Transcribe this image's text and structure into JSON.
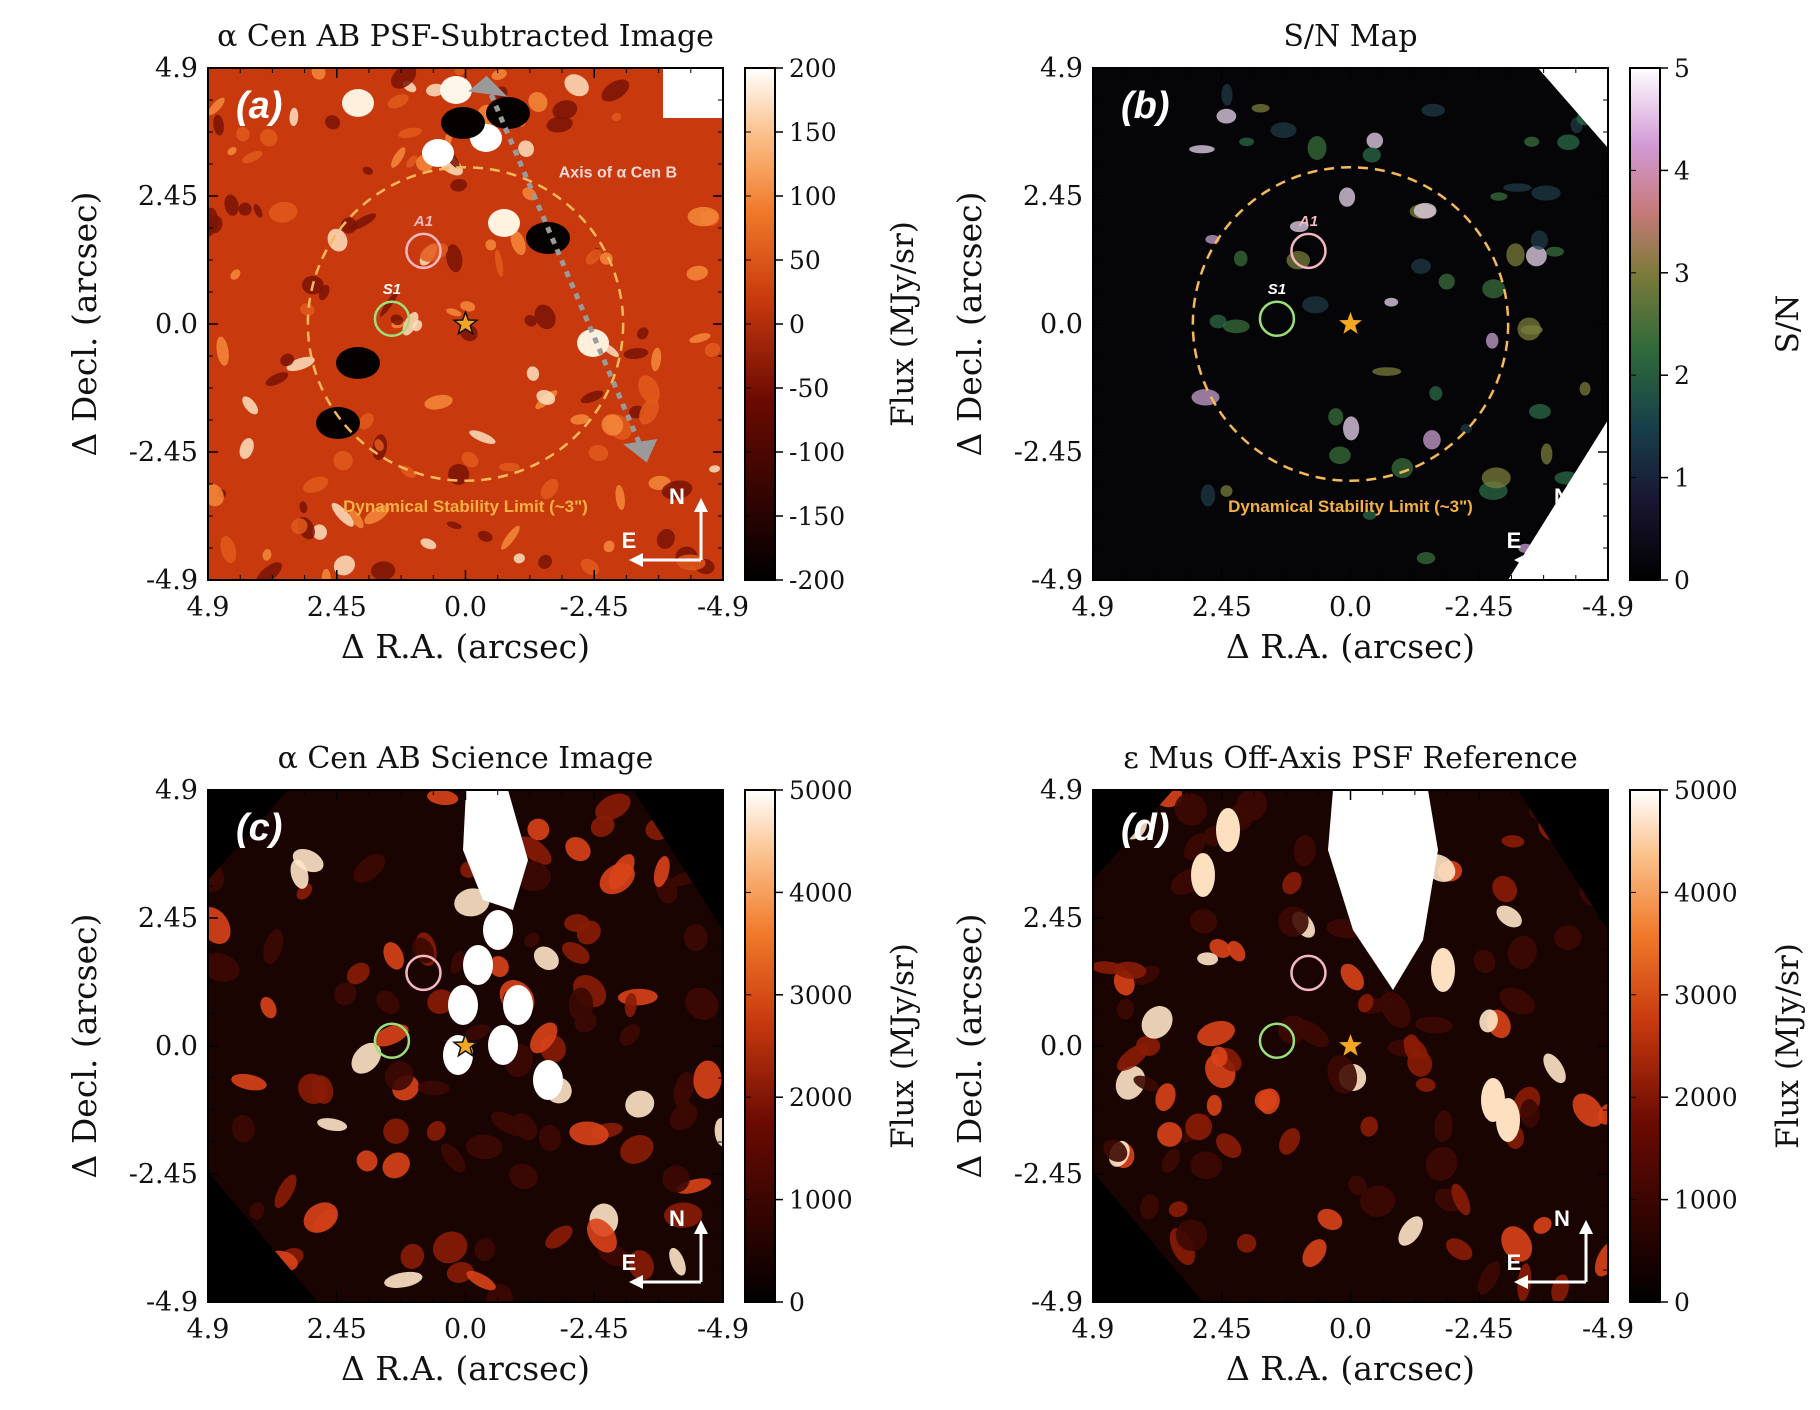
{
  "chart_data": [
    {
      "id": "a",
      "type": "heatmap",
      "title": "α Cen AB PSF-Subtracted Image",
      "panel_label": "(a)",
      "xlabel": "Δ R.A. (arcsec)",
      "ylabel": "Δ Decl. (arcsec)",
      "x_ticks": [
        "4.9",
        "2.45",
        "0.0",
        "-2.45",
        "-4.9"
      ],
      "y_ticks": [
        "4.9",
        "2.45",
        "0.0",
        "-2.45",
        "-4.9"
      ],
      "xlim": [
        4.9,
        -4.9
      ],
      "ylim": [
        -4.9,
        4.9
      ],
      "colorbar": {
        "label": "Flux (MJy/sr)",
        "range": [
          -200,
          200
        ],
        "ticks": [
          "200",
          "150",
          "100",
          "50",
          "0",
          "-50",
          "-100",
          "-150",
          "-200"
        ],
        "colormap": "gist_heat"
      },
      "background": "#c83a0e",
      "sources": [
        {
          "name": "A1",
          "ra": 0.8,
          "dec": 1.4,
          "color": "#f4b8c2"
        },
        {
          "name": "S1",
          "ra": 1.4,
          "dec": 0.1,
          "color": "#9be07a"
        }
      ],
      "star": {
        "ra": 0.0,
        "dec": 0.0,
        "color": "#111111"
      },
      "stability_radius_arcsec": 3.0,
      "stability_label": "Dynamical Stability Limit (~3\")",
      "axis_annotation": "Axis of α Cen B",
      "compass": {
        "north": "N",
        "east": "E"
      }
    },
    {
      "id": "b",
      "type": "heatmap",
      "title": "S/N Map",
      "panel_label": "(b)",
      "xlabel": "Δ R.A. (arcsec)",
      "ylabel": "Δ Decl. (arcsec)",
      "x_ticks": [
        "4.9",
        "2.45",
        "0.0",
        "-2.45",
        "-4.9"
      ],
      "y_ticks": [
        "4.9",
        "2.45",
        "0.0",
        "-2.45",
        "-4.9"
      ],
      "xlim": [
        4.9,
        -4.9
      ],
      "ylim": [
        -4.9,
        4.9
      ],
      "colorbar": {
        "label": "S/N",
        "range": [
          0,
          5
        ],
        "ticks": [
          "5",
          "4",
          "3",
          "2",
          "1",
          "0"
        ],
        "colormap": "cubehelix"
      },
      "background": "#050508",
      "sources": [
        {
          "name": "A1",
          "ra": 0.8,
          "dec": 1.4,
          "color": "#f4b8c2"
        },
        {
          "name": "S1",
          "ra": 1.4,
          "dec": 0.1,
          "color": "#9be07a"
        }
      ],
      "star": {
        "ra": 0.0,
        "dec": 0.0,
        "color": "#f5a623"
      },
      "stability_radius_arcsec": 3.0,
      "stability_label": "Dynamical Stability Limit (~3\")",
      "compass": {
        "north": "N",
        "east": "E"
      }
    },
    {
      "id": "c",
      "type": "heatmap",
      "title": "α Cen AB Science Image",
      "panel_label": "(c)",
      "xlabel": "Δ R.A. (arcsec)",
      "ylabel": "Δ Decl. (arcsec)",
      "x_ticks": [
        "4.9",
        "2.45",
        "0.0",
        "-2.45",
        "-4.9"
      ],
      "y_ticks": [
        "4.9",
        "2.45",
        "0.0",
        "-2.45",
        "-4.9"
      ],
      "xlim": [
        4.9,
        -4.9
      ],
      "ylim": [
        -4.9,
        4.9
      ],
      "colorbar": {
        "label": "Flux (MJy/sr)",
        "range": [
          0,
          5000
        ],
        "ticks": [
          "5000",
          "4000",
          "3000",
          "2000",
          "1000",
          "0"
        ],
        "colormap": "gist_heat"
      },
      "background": "#1a0402",
      "sources": [
        {
          "name": "",
          "ra": 0.8,
          "dec": 1.4,
          "color": "#f4b8c2"
        },
        {
          "name": "",
          "ra": 1.4,
          "dec": 0.1,
          "color": "#9be07a"
        }
      ],
      "star": {
        "ra": 0.0,
        "dec": 0.0,
        "color": "#111111"
      },
      "compass": {
        "north": "N",
        "east": "E"
      }
    },
    {
      "id": "d",
      "type": "heatmap",
      "title": "ε Mus Off-Axis PSF Reference",
      "panel_label": "(d)",
      "xlabel": "Δ R.A. (arcsec)",
      "ylabel": "Δ Decl. (arcsec)",
      "x_ticks": [
        "4.9",
        "2.45",
        "0.0",
        "-2.45",
        "-4.9"
      ],
      "y_ticks": [
        "4.9",
        "2.45",
        "0.0",
        "-2.45",
        "-4.9"
      ],
      "xlim": [
        4.9,
        -4.9
      ],
      "ylim": [
        -4.9,
        4.9
      ],
      "colorbar": {
        "label": "Flux (MJy/sr)",
        "range": [
          0,
          5000
        ],
        "ticks": [
          "5000",
          "4000",
          "3000",
          "2000",
          "1000",
          "0"
        ],
        "colormap": "gist_heat"
      },
      "background": "#1a0402",
      "sources": [
        {
          "name": "",
          "ra": 0.8,
          "dec": 1.4,
          "color": "#f4b8c2"
        },
        {
          "name": "",
          "ra": 1.4,
          "dec": 0.1,
          "color": "#9be07a"
        }
      ],
      "star": {
        "ra": 0.0,
        "dec": 0.0,
        "color": "#f5a623"
      },
      "compass": {
        "north": "N",
        "east": "E"
      }
    }
  ]
}
